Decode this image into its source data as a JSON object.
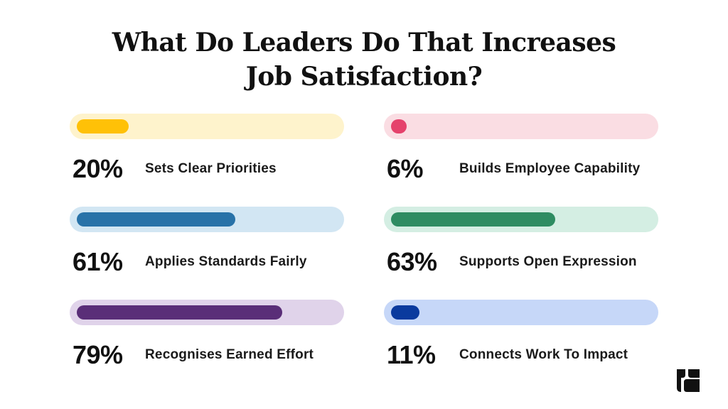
{
  "title": {
    "line1": "What Do Leaders Do That Increases",
    "line2": "Job Satisfaction?"
  },
  "chart_data": {
    "type": "bar",
    "orientation": "horizontal",
    "title": "What Do Leaders Do That Increases Job Satisfaction?",
    "unit": "%",
    "ylim": [
      0,
      100
    ],
    "categories": [
      "Sets Clear Priorities",
      "Builds Employee Capability",
      "Applies Standards Fairly",
      "Supports Open Expression",
      "Recognises Earned Effort",
      "Connects Work To Impact"
    ],
    "values": [
      20,
      6,
      61,
      63,
      79,
      11
    ],
    "items": [
      {
        "pct": "20%",
        "label": "Sets Clear Priorities",
        "value": 20,
        "track_color": "#FEF3CC",
        "fill_color": "#FFC107"
      },
      {
        "pct": "6%",
        "label": "Builds Employee Capability",
        "value": 6,
        "track_color": "#FADDE3",
        "fill_color": "#E5426C"
      },
      {
        "pct": "61%",
        "label": "Applies Standards Fairly",
        "value": 61,
        "track_color": "#D2E6F3",
        "fill_color": "#2872A8"
      },
      {
        "pct": "63%",
        "label": "Supports Open Expression",
        "value": 63,
        "track_color": "#D4EEE3",
        "fill_color": "#2E8C62"
      },
      {
        "pct": "79%",
        "label": "Recognises Earned Effort",
        "value": 79,
        "track_color": "#E0D3EA",
        "fill_color": "#5A2E78"
      },
      {
        "pct": "11%",
        "label": "Connects Work To Impact",
        "value": 11,
        "track_color": "#C6D7F8",
        "fill_color": "#0A3A9E"
      }
    ]
  },
  "logo": {
    "icon": "brand-logo-icon",
    "color": "#111111"
  }
}
